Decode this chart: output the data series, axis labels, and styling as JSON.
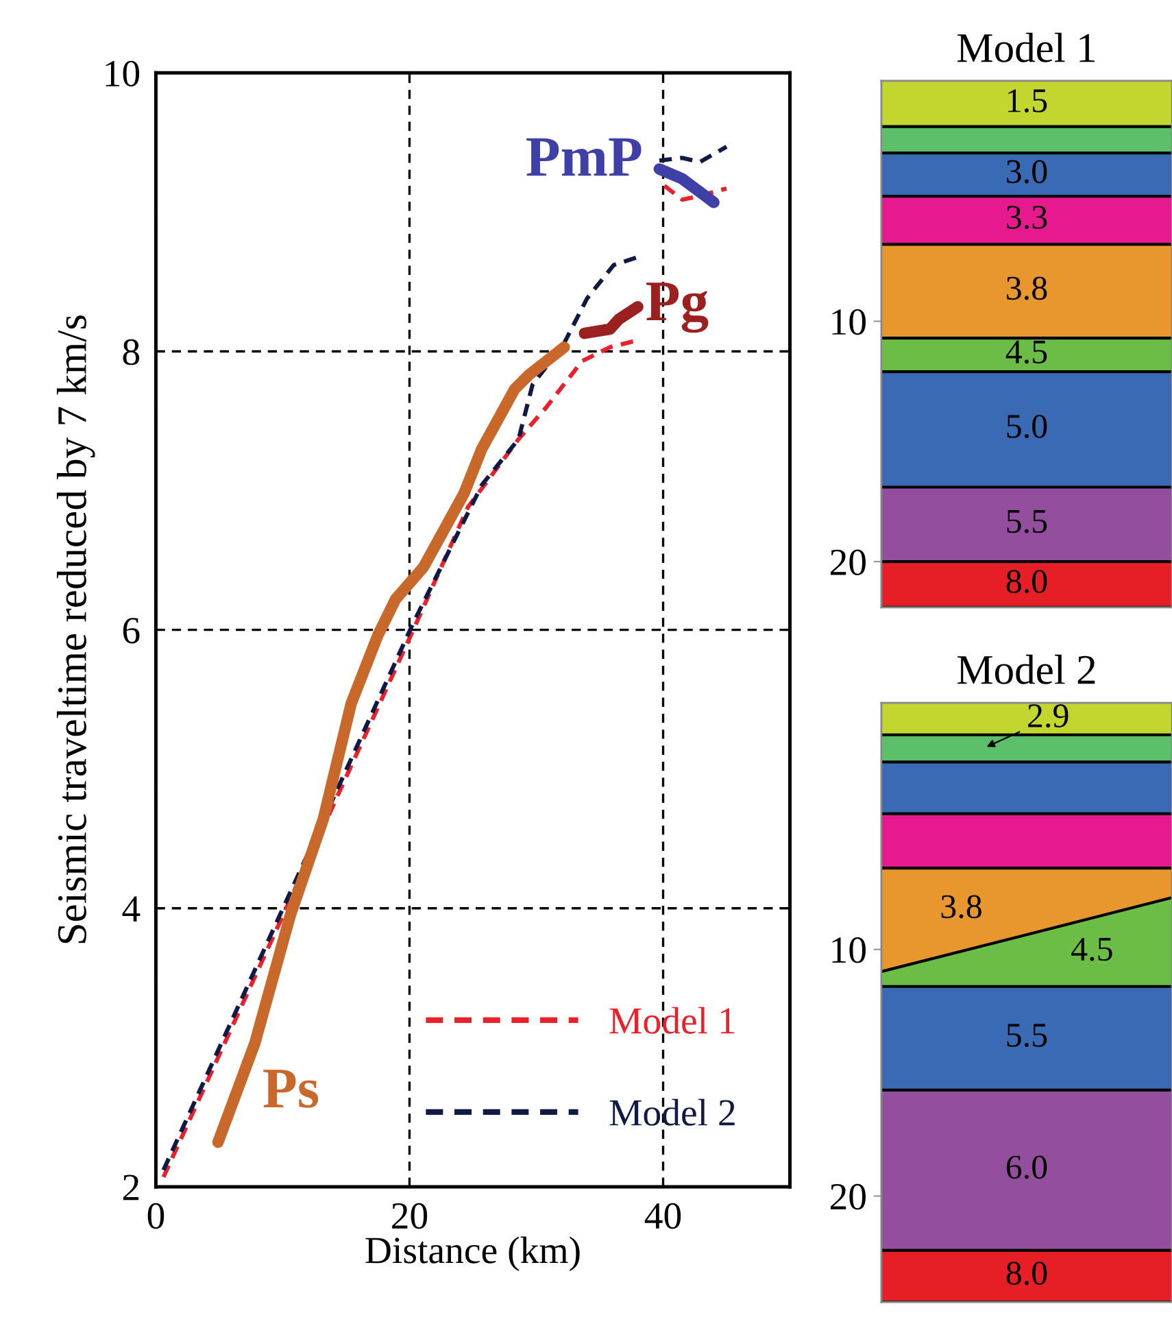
{
  "chart_data": [
    {
      "type": "line",
      "xlabel": "Distance (km)",
      "ylabel": "Seismic traveltime reduced by 7 km/s",
      "xlim": [
        0,
        50
      ],
      "xticks": [
        0,
        20,
        40
      ],
      "ylim": [
        2,
        10
      ],
      "yticks": [
        2,
        4,
        6,
        8,
        10
      ],
      "grid": true,
      "legend": "bottom right",
      "series": [
        {
          "name": "Model 1",
          "color": "#e8212b",
          "line_style": "dashed",
          "x": [
            0.6,
            20.3,
            24.6,
            28.6,
            30.8,
            33.6,
            35.8,
            38.0
          ],
          "values": [
            2.07,
            6.0,
            6.88,
            7.37,
            7.6,
            7.93,
            8.03,
            8.08
          ]
        },
        {
          "name": "Model 2",
          "color": "#101a45",
          "line_style": "dashed",
          "x": [
            0.6,
            20.3,
            25.7,
            28.6,
            29.7,
            32.2,
            34.0,
            36.1,
            38.1
          ],
          "values": [
            2.12,
            6.05,
            7.04,
            7.37,
            7.76,
            8.06,
            8.38,
            8.62,
            8.68
          ]
        },
        {
          "color": "#e8212b",
          "line_style": "dashed",
          "x": [
            40.1,
            41.5,
            42.6,
            45.0
          ],
          "values": [
            9.19,
            9.09,
            9.11,
            9.17
          ]
        },
        {
          "color": "#101a45",
          "line_style": "dashed",
          "x": [
            39.7,
            41.5,
            42.9,
            45.0
          ],
          "values": [
            9.37,
            9.39,
            9.36,
            9.47
          ]
        },
        {
          "name": "Ps",
          "color": "#c8682a",
          "line_style": "solid",
          "x": [
            4.9,
            7.8,
            10.6,
            13.2,
            15.4,
            17.5,
            18.9,
            21.1,
            24.3,
            25.7,
            28.3,
            29.4,
            32.2
          ],
          "values": [
            2.32,
            3.03,
            3.95,
            4.64,
            5.47,
            5.96,
            6.22,
            6.45,
            6.98,
            7.3,
            7.73,
            7.83,
            8.03
          ]
        },
        {
          "name": "Pg",
          "color": "#9b2121",
          "line_style": "solid",
          "x": [
            33.8,
            35.8,
            36.5,
            38.0
          ],
          "values": [
            8.13,
            8.16,
            8.23,
            8.32
          ]
        },
        {
          "name": "PmP",
          "color": "#3f3fa8",
          "line_style": "solid",
          "x": [
            39.7,
            41.5,
            44.0
          ],
          "values": [
            9.31,
            9.24,
            9.07
          ]
        }
      ]
    },
    {
      "type": "area",
      "stacked": true,
      "title": "Model 1",
      "categories": [
        null,
        null,
        null
      ],
      "ylim": [
        21.9,
        0
      ],
      "yticks": [
        10,
        20
      ],
      "tick_labels": "y",
      "series": [
        {
          "color": "#c3d52f",
          "values": [
            1.9,
            1.9,
            1.9
          ]
        },
        {
          "color": "#5cbf6a",
          "values": [
            1.1,
            1.1,
            1.1
          ]
        },
        {
          "color": "#3a6ab4",
          "values": [
            1.8,
            1.8,
            1.8
          ]
        },
        {
          "color": "#e6198f",
          "values": [
            2.0,
            2.0,
            2.0
          ]
        },
        {
          "color": "#e8962e",
          "values": [
            3.9,
            3.9,
            3.9
          ]
        },
        {
          "color": "#6cbd45",
          "values": [
            1.4,
            1.4,
            1.4
          ]
        },
        {
          "color": "#3a6ab4",
          "values": [
            4.8,
            4.8,
            4.8
          ]
        },
        {
          "color": "#934f9d",
          "values": [
            3.1,
            3.1,
            3.1
          ]
        },
        {
          "color": "#e61e25",
          "values": [
            1.9,
            1.9,
            1.9
          ]
        }
      ],
      "annotations": [
        "1.5",
        "3.0",
        "3.3",
        "3.8",
        "4.5",
        "5.0",
        "5.5",
        "8.0"
      ]
    },
    {
      "type": "area",
      "stacked": true,
      "title": "Model 2",
      "categories": [
        null,
        null,
        null
      ],
      "ylim": [
        24.3,
        0
      ],
      "yticks": [
        10,
        20
      ],
      "tick_labels": "y",
      "series": [
        {
          "color": "#c3d52f",
          "values": [
            1.3,
            1.3,
            1.3
          ]
        },
        {
          "color": "#5cbf6a",
          "values": [
            1.1,
            1.1,
            1.1
          ]
        },
        {
          "color": "#3a6ab4",
          "values": [
            2.1,
            2.1,
            2.1
          ]
        },
        {
          "color": "#e6198f",
          "values": [
            2.2,
            2.2,
            2.2
          ]
        },
        {
          "color": "#e8962e",
          "values": [
            4.2,
            2.7,
            1.2
          ]
        },
        {
          "color": "#6cbd45",
          "values": [
            0.6,
            2.1,
            3.6
          ]
        },
        {
          "color": "#3a6ab4",
          "values": [
            4.2,
            4.2,
            4.2
          ]
        },
        {
          "color": "#934f9d",
          "values": [
            6.5,
            6.5,
            6.5
          ]
        },
        {
          "color": "#e61e25",
          "values": [
            2.1,
            2.1,
            2.1
          ]
        }
      ],
      "annotations": [
        "2.9",
        "3.8",
        "4.5",
        "5.5",
        "6.0",
        "8.0"
      ]
    }
  ]
}
